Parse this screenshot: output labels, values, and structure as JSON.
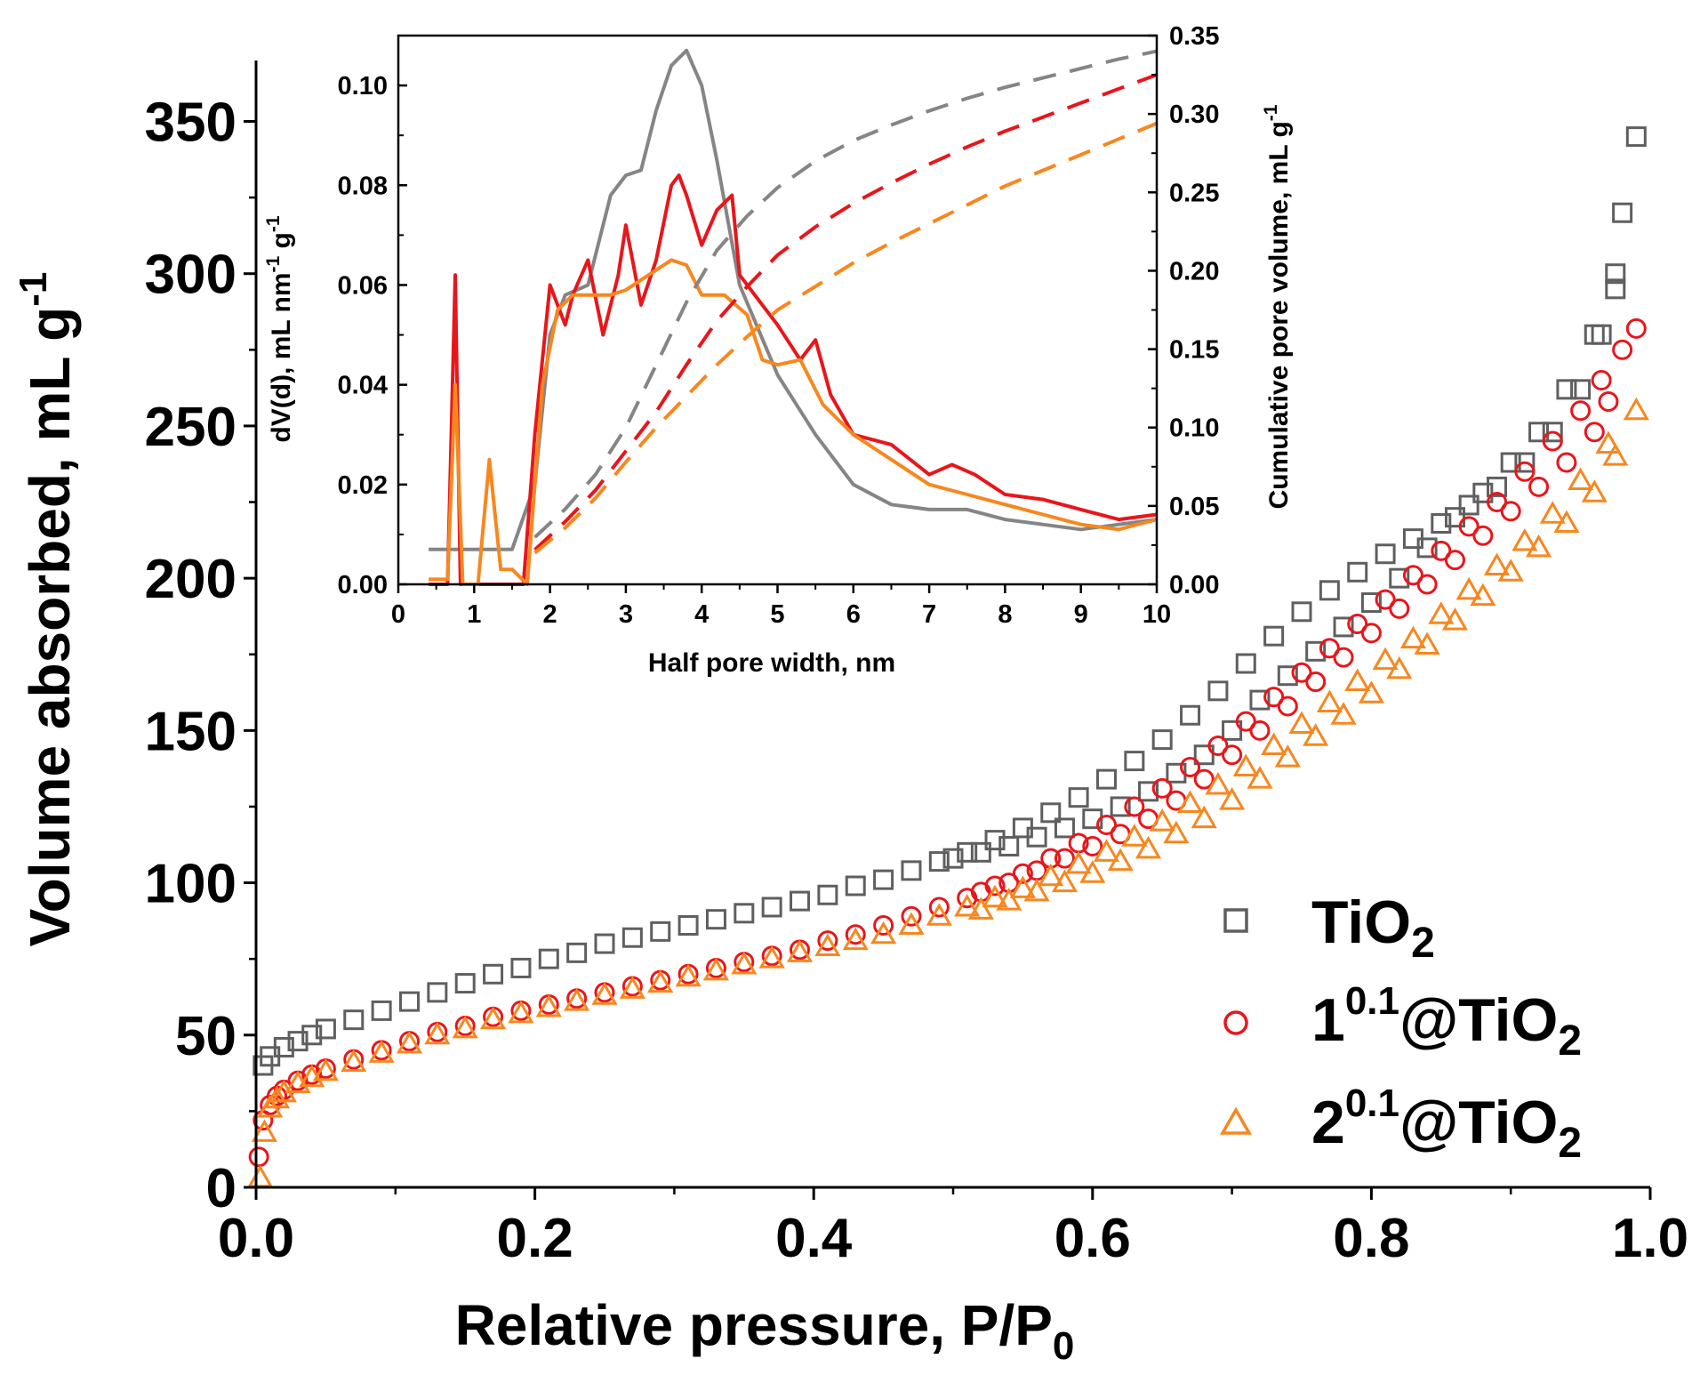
{
  "chart_data": [
    {
      "id": "isotherm",
      "type": "scatter",
      "xlabel": "Relative pressure, P/P",
      "xlabel_sub": "0",
      "ylabel": "Volume absorbed, mL g",
      "ylabel_sup": "-1",
      "xlim": [
        0,
        1.0
      ],
      "ylim": [
        0,
        370
      ],
      "xticks": [
        "0.0",
        "0.2",
        "0.4",
        "0.6",
        "0.8",
        "1.0"
      ],
      "yticks": [
        "0",
        "50",
        "100",
        "150",
        "200",
        "250",
        "300",
        "350"
      ],
      "legend_position": "bottom-right",
      "series": [
        {
          "name": "TiO2",
          "label_base": "TiO",
          "label_sub": "2",
          "label_sup": "",
          "marker": "square",
          "color": "#5f5f5f",
          "adsorption": {
            "x": [
              0.005,
              0.01,
              0.02,
              0.03,
              0.04,
              0.05,
              0.07,
              0.09,
              0.11,
              0.13,
              0.15,
              0.17,
              0.19,
              0.21,
              0.23,
              0.25,
              0.27,
              0.29,
              0.31,
              0.33,
              0.35,
              0.37,
              0.39,
              0.41,
              0.43,
              0.45,
              0.47,
              0.49,
              0.51,
              0.53,
              0.55,
              0.57,
              0.59,
              0.61,
              0.63,
              0.65,
              0.67,
              0.69,
              0.71,
              0.73,
              0.75,
              0.77,
              0.79,
              0.81,
              0.83,
              0.85,
              0.87,
              0.89,
              0.91,
              0.93,
              0.95,
              0.965,
              0.975,
              0.98,
              0.99
            ],
            "y": [
              40,
              43,
              46,
              48,
              50,
              52,
              55,
              58,
              61,
              64,
              67,
              70,
              72,
              75,
              77,
              80,
              82,
              84,
              86,
              88,
              90,
              92,
              94,
              96,
              99,
              101,
              104,
              107,
              110,
              114,
              118,
              123,
              128,
              134,
              140,
              147,
              155,
              163,
              172,
              181,
              189,
              196,
              202,
              208,
              213,
              218,
              224,
              230,
              238,
              248,
              262,
              280,
              300,
              320,
              345
            ]
          },
          "desorption": {
            "x": [
              0.975,
              0.96,
              0.94,
              0.92,
              0.9,
              0.88,
              0.86,
              0.84,
              0.82,
              0.8,
              0.78,
              0.76,
              0.74,
              0.72,
              0.7,
              0.68,
              0.66,
              0.64,
              0.62,
              0.6,
              0.58,
              0.56,
              0.54,
              0.52,
              0.5
            ],
            "y": [
              295,
              280,
              262,
              248,
              238,
              228,
              220,
              210,
              200,
              192,
              184,
              176,
              168,
              160,
              150,
              142,
              136,
              130,
              125,
              121,
              118,
              115,
              112,
              110,
              108
            ]
          }
        },
        {
          "name": "1^0.1@TiO2",
          "label_base": "1",
          "label_sup": "0.1",
          "label_mid": "@TiO",
          "label_sub": "2",
          "marker": "circle",
          "color": "#e8161b",
          "adsorption": {
            "x": [
              0.002,
              0.005,
              0.01,
              0.015,
              0.02,
              0.03,
              0.04,
              0.05,
              0.07,
              0.09,
              0.11,
              0.13,
              0.15,
              0.17,
              0.19,
              0.21,
              0.23,
              0.25,
              0.27,
              0.29,
              0.31,
              0.33,
              0.35,
              0.37,
              0.39,
              0.41,
              0.43,
              0.45,
              0.47,
              0.49,
              0.51,
              0.53,
              0.55,
              0.57,
              0.59,
              0.61,
              0.63,
              0.65,
              0.67,
              0.69,
              0.71,
              0.73,
              0.75,
              0.77,
              0.79,
              0.81,
              0.83,
              0.85,
              0.87,
              0.89,
              0.91,
              0.93,
              0.95,
              0.965,
              0.98,
              0.99
            ],
            "y": [
              10,
              22,
              27,
              30,
              32,
              35,
              37,
              39,
              42,
              45,
              48,
              51,
              53,
              56,
              58,
              60,
              62,
              64,
              66,
              68,
              70,
              72,
              74,
              76,
              78,
              81,
              83,
              86,
              89,
              92,
              95,
              99,
              103,
              108,
              113,
              119,
              125,
              131,
              138,
              145,
              153,
              161,
              169,
              177,
              185,
              193,
              201,
              209,
              217,
              225,
              235,
              245,
              255,
              265,
              275,
              282
            ]
          },
          "desorption": {
            "x": [
              0.97,
              0.96,
              0.94,
              0.92,
              0.9,
              0.88,
              0.86,
              0.84,
              0.82,
              0.8,
              0.78,
              0.76,
              0.74,
              0.72,
              0.7,
              0.68,
              0.66,
              0.64,
              0.62,
              0.6,
              0.58,
              0.56,
              0.54,
              0.52
            ],
            "y": [
              258,
              248,
              238,
              230,
              222,
              214,
              206,
              198,
              190,
              182,
              174,
              166,
              158,
              150,
              142,
              134,
              127,
              121,
              116,
              112,
              108,
              104,
              100,
              97
            ]
          }
        },
        {
          "name": "2^0.1@TiO2",
          "label_base": "2",
          "label_sup": "0.1",
          "label_mid": "@TiO",
          "label_sub": "2",
          "marker": "triangle",
          "color": "#f7871f",
          "adsorption": {
            "x": [
              0.003,
              0.006,
              0.01,
              0.015,
              0.02,
              0.03,
              0.04,
              0.05,
              0.07,
              0.09,
              0.11,
              0.13,
              0.15,
              0.17,
              0.19,
              0.21,
              0.23,
              0.25,
              0.27,
              0.29,
              0.31,
              0.33,
              0.35,
              0.37,
              0.39,
              0.41,
              0.43,
              0.45,
              0.47,
              0.49,
              0.51,
              0.53,
              0.55,
              0.57,
              0.59,
              0.61,
              0.63,
              0.65,
              0.67,
              0.69,
              0.71,
              0.73,
              0.75,
              0.77,
              0.79,
              0.81,
              0.83,
              0.85,
              0.87,
              0.89,
              0.91,
              0.93,
              0.95,
              0.97,
              0.99
            ],
            "y": [
              3,
              18,
              26,
              29,
              31,
              34,
              36,
              38,
              41,
              44,
              47,
              50,
              52,
              55,
              57,
              59,
              61,
              63,
              65,
              67,
              69,
              71,
              73,
              75,
              77,
              79,
              81,
              83,
              86,
              89,
              92,
              95,
              98,
              102,
              106,
              110,
              115,
              120,
              126,
              132,
              138,
              145,
              152,
              159,
              166,
              173,
              180,
              188,
              196,
              204,
              212,
              221,
              232,
              244,
              255
            ]
          },
          "desorption": {
            "x": [
              0.975,
              0.96,
              0.94,
              0.92,
              0.9,
              0.88,
              0.86,
              0.84,
              0.82,
              0.8,
              0.78,
              0.76,
              0.74,
              0.72,
              0.7,
              0.68,
              0.66,
              0.64,
              0.62,
              0.6,
              0.58,
              0.56,
              0.54,
              0.52
            ],
            "y": [
              240,
              228,
              218,
              210,
              202,
              194,
              186,
              178,
              170,
              162,
              155,
              148,
              141,
              134,
              127,
              121,
              116,
              111,
              107,
              103,
              100,
              97,
              94,
              91
            ]
          }
        }
      ]
    },
    {
      "id": "inset",
      "type": "line",
      "xlabel": "Half pore width, nm",
      "ylabel_left": "dV(d), mL nm",
      "ylabel_left_sup1": "-1",
      "ylabel_left_mid": " g",
      "ylabel_left_sup2": "-1",
      "ylabel_right": "Cumulative pore volume, mL g",
      "ylabel_right_sup": "-1",
      "xlim": [
        0,
        10
      ],
      "ylim_left": [
        0,
        0.11
      ],
      "ylim_right": [
        0,
        0.35
      ],
      "xticks": [
        "0",
        "1",
        "2",
        "3",
        "4",
        "5",
        "6",
        "7",
        "8",
        "9",
        "10"
      ],
      "yticks_left": [
        "0.00",
        "0.02",
        "0.04",
        "0.06",
        "0.08",
        "0.10"
      ],
      "yticks_right": [
        "0.00",
        "0.05",
        "0.10",
        "0.15",
        "0.20",
        "0.25",
        "0.30",
        "0.35"
      ],
      "series": [
        {
          "name": "TiO2 dV(d)",
          "axis": "left",
          "style": "solid",
          "color": "#858585",
          "x": [
            0.4,
            1.0,
            1.5,
            1.8,
            2.0,
            2.2,
            2.5,
            2.8,
            3.0,
            3.2,
            3.4,
            3.6,
            3.8,
            4.0,
            4.2,
            4.5,
            5.0,
            5.5,
            6.0,
            6.5,
            7.0,
            7.5,
            8.0,
            8.5,
            9.0,
            9.5,
            10.0
          ],
          "y": [
            0.007,
            0.007,
            0.007,
            0.02,
            0.05,
            0.058,
            0.06,
            0.078,
            0.082,
            0.083,
            0.095,
            0.104,
            0.107,
            0.1,
            0.085,
            0.06,
            0.042,
            0.03,
            0.02,
            0.016,
            0.015,
            0.015,
            0.013,
            0.012,
            0.011,
            0.012,
            0.013
          ]
        },
        {
          "name": "1^0.1@TiO2 dV(d)",
          "axis": "left",
          "style": "solid",
          "color": "#e8161b",
          "x": [
            0.4,
            0.65,
            0.75,
            0.82,
            0.9,
            1.0,
            1.2,
            1.5,
            1.65,
            1.8,
            2.0,
            2.2,
            2.3,
            2.5,
            2.7,
            2.9,
            3.0,
            3.2,
            3.4,
            3.6,
            3.7,
            3.8,
            4.0,
            4.2,
            4.4,
            4.5,
            4.7,
            5.0,
            5.3,
            5.5,
            5.7,
            6.0,
            6.5,
            7.0,
            7.3,
            7.6,
            8.0,
            8.5,
            9.0,
            9.5,
            10.0
          ],
          "y": [
            0.0,
            0.0,
            0.062,
            0.0,
            0.0,
            0.0,
            0.0,
            0.0,
            0.0,
            0.03,
            0.06,
            0.052,
            0.058,
            0.065,
            0.05,
            0.062,
            0.072,
            0.056,
            0.065,
            0.08,
            0.082,
            0.078,
            0.068,
            0.075,
            0.078,
            0.062,
            0.058,
            0.052,
            0.045,
            0.049,
            0.038,
            0.03,
            0.028,
            0.022,
            0.024,
            0.022,
            0.018,
            0.017,
            0.015,
            0.013,
            0.014
          ]
        },
        {
          "name": "2^0.1@TiO2 dV(d)",
          "axis": "left",
          "style": "solid",
          "color": "#f7871f",
          "x": [
            0.4,
            0.65,
            0.75,
            0.85,
            0.95,
            1.05,
            1.2,
            1.35,
            1.5,
            1.7,
            1.9,
            2.1,
            2.3,
            2.5,
            2.8,
            3.0,
            3.3,
            3.6,
            3.8,
            4.0,
            4.3,
            4.6,
            4.8,
            5.0,
            5.3,
            5.6,
            6.0,
            6.5,
            7.0,
            7.5,
            8.0,
            8.5,
            9.0,
            9.5,
            10.0
          ],
          "y": [
            0.001,
            0.001,
            0.04,
            0.0,
            0.0,
            0.0,
            0.025,
            0.003,
            0.003,
            0.0,
            0.04,
            0.055,
            0.058,
            0.058,
            0.058,
            0.059,
            0.062,
            0.065,
            0.064,
            0.058,
            0.058,
            0.054,
            0.045,
            0.044,
            0.045,
            0.036,
            0.03,
            0.025,
            0.02,
            0.018,
            0.016,
            0.014,
            0.012,
            0.011,
            0.013
          ]
        },
        {
          "name": "TiO2 cumulative",
          "axis": "right",
          "style": "dashed",
          "color": "#858585",
          "x": [
            1.8,
            2.2,
            2.6,
            3.0,
            3.4,
            3.8,
            4.2,
            4.6,
            5.0,
            5.5,
            6.0,
            6.5,
            7.0,
            7.5,
            8.0,
            8.5,
            9.0,
            9.5,
            10.0
          ],
          "y": [
            0.03,
            0.048,
            0.07,
            0.1,
            0.14,
            0.18,
            0.213,
            0.235,
            0.253,
            0.27,
            0.283,
            0.293,
            0.302,
            0.31,
            0.317,
            0.323,
            0.329,
            0.335,
            0.34
          ]
        },
        {
          "name": "1^0.1@TiO2 cumulative",
          "axis": "right",
          "style": "dashed",
          "color": "#e8161b",
          "x": [
            1.8,
            2.2,
            2.6,
            3.0,
            3.4,
            3.8,
            4.2,
            4.6,
            5.0,
            5.5,
            6.0,
            6.5,
            7.0,
            7.5,
            8.0,
            8.5,
            9.0,
            9.5,
            10.0
          ],
          "y": [
            0.022,
            0.04,
            0.06,
            0.085,
            0.11,
            0.14,
            0.168,
            0.19,
            0.21,
            0.228,
            0.243,
            0.256,
            0.268,
            0.279,
            0.289,
            0.298,
            0.307,
            0.316,
            0.325
          ]
        },
        {
          "name": "2^0.1@TiO2 cumulative",
          "axis": "right",
          "style": "dashed",
          "color": "#f7871f",
          "x": [
            1.8,
            2.2,
            2.6,
            3.0,
            3.4,
            3.8,
            4.2,
            4.6,
            5.0,
            5.5,
            6.0,
            6.5,
            7.0,
            7.5,
            8.0,
            8.5,
            9.0,
            9.5,
            10.0
          ],
          "y": [
            0.02,
            0.036,
            0.055,
            0.078,
            0.1,
            0.12,
            0.14,
            0.158,
            0.175,
            0.19,
            0.205,
            0.218,
            0.23,
            0.242,
            0.254,
            0.264,
            0.274,
            0.284,
            0.294
          ]
        }
      ]
    }
  ]
}
